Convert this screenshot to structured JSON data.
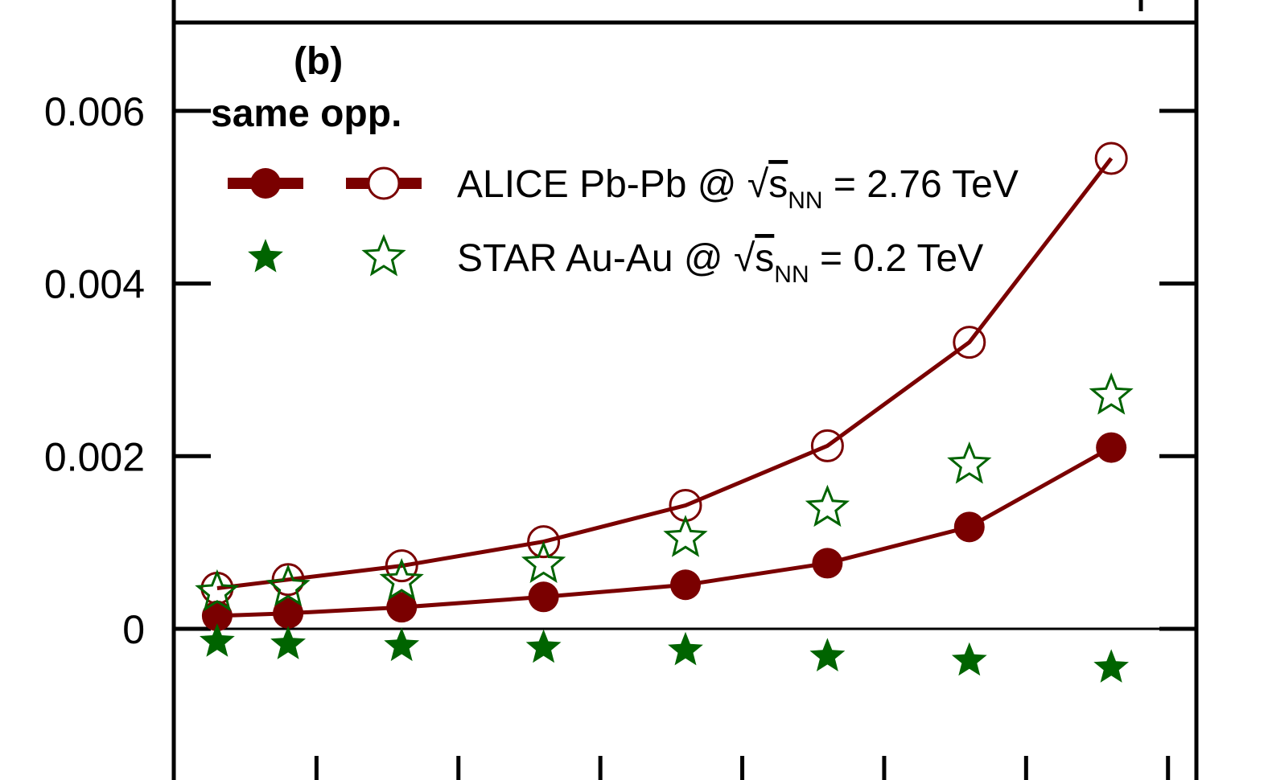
{
  "chart_data": {
    "type": "line",
    "panel_label": "(b)",
    "legend_header": "same opp.",
    "ylim": [
      -0.0014,
      0.0071
    ],
    "y_ticks": [
      {
        "value": 0,
        "label": "0"
      },
      {
        "value": 0.002,
        "label": "0.002"
      },
      {
        "value": 0.004,
        "label": "0.004"
      },
      {
        "value": 0.006,
        "label": "0.006"
      }
    ],
    "x_positions": [
      0.5,
      1.0,
      1.8,
      2.8,
      3.8,
      4.8,
      5.8,
      6.8
    ],
    "x_ticks": [
      1.2,
      2.2,
      3.2,
      4.2,
      5.2,
      6.2,
      7.2
    ],
    "xlim": [
      0.2,
      7.4
    ],
    "series": [
      {
        "key": "alice_same",
        "group": "ALICE",
        "charge": "same",
        "marker": "circle-filled",
        "color": "#7a0000",
        "line": true,
        "values": [
          0.00015,
          0.00018,
          0.00025,
          0.00037,
          0.00051,
          0.00076,
          0.00118,
          0.0021
        ]
      },
      {
        "key": "alice_opp",
        "group": "ALICE",
        "charge": "opp.",
        "marker": "circle-open",
        "color": "#7a0000",
        "line": true,
        "values": [
          0.00047,
          0.00057,
          0.00073,
          0.00101,
          0.00143,
          0.00212,
          0.00332,
          0.00545
        ]
      },
      {
        "key": "star_same",
        "group": "STAR",
        "charge": "same",
        "marker": "star-filled",
        "color": "#006400",
        "line": false,
        "values": [
          -0.00015,
          -0.00018,
          -0.0002,
          -0.00022,
          -0.00025,
          -0.00032,
          -0.00037,
          -0.00045
        ]
      },
      {
        "key": "star_opp",
        "group": "STAR",
        "charge": "opp.",
        "marker": "star-open",
        "color": "#006400",
        "line": false,
        "values": [
          0.00042,
          0.00048,
          0.00055,
          0.00075,
          0.00105,
          0.0014,
          0.0019,
          0.0027
        ]
      }
    ],
    "legend": [
      {
        "label_prefix": "ALICE Pb-Pb @ ",
        "sqrt_sym": "√",
        "sqrt_arg": "s",
        "sqrt_sub": "NN",
        "label_suffix": " = 2.76 TeV",
        "same_marker": "circle-filled",
        "opp_marker": "circle-open",
        "color": "#7a0000"
      },
      {
        "label_prefix": "STAR Au-Au @ ",
        "sqrt_sym": "√",
        "sqrt_arg": "s",
        "sqrt_sub": "NN",
        "label_suffix": " = 0.2 TeV",
        "same_marker": "star-filled",
        "opp_marker": "star-open",
        "color": "#006400"
      }
    ]
  }
}
